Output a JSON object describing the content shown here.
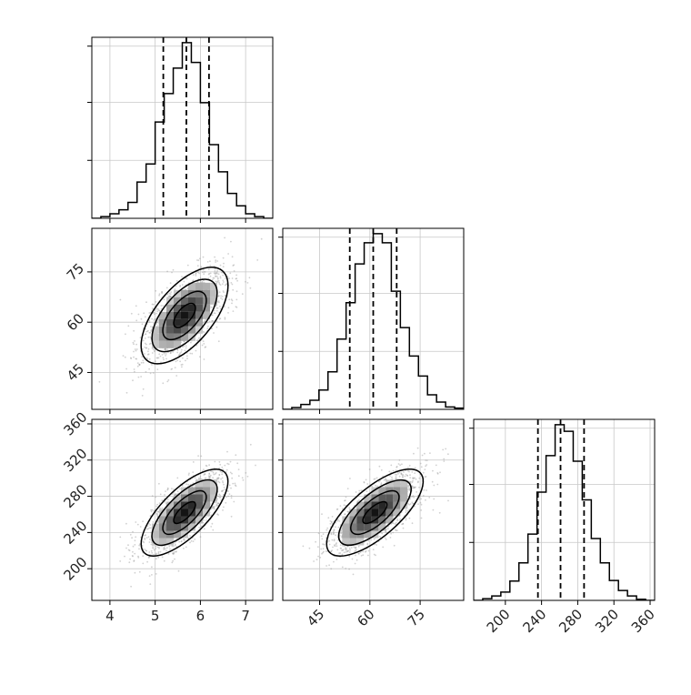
{
  "chart_data": {
    "type": "scatter",
    "variant": "corner-plot",
    "title": "",
    "grid": true,
    "colors": {
      "hist": "#000000",
      "quantile": "#000000",
      "scatter": "#9a9a9a",
      "grid": "#c8c8c8"
    },
    "parameters": [
      {
        "name": "",
        "range": [
          3.6,
          7.6
        ],
        "ticks": [
          4,
          5,
          6,
          7
        ],
        "tick_labels": [
          "4",
          "5",
          "6",
          "7"
        ],
        "quantiles": [
          5.18,
          5.69,
          6.19
        ],
        "histogram": {
          "bin_edges": [
            3.6,
            3.8,
            4.0,
            4.2,
            4.4,
            4.6,
            4.8,
            5.0,
            5.2,
            5.4,
            5.6,
            5.8,
            6.0,
            6.2,
            6.4,
            6.6,
            6.8,
            7.0,
            7.2,
            7.4,
            7.6
          ],
          "counts": [
            0,
            3,
            8,
            15,
            28,
            64,
            96,
            170,
            220,
            265,
            310,
            275,
            204,
            130,
            82,
            44,
            22,
            8,
            3,
            0
          ]
        }
      },
      {
        "name": "",
        "range": [
          34,
          88
        ],
        "ticks": [
          45,
          60,
          75
        ],
        "tick_labels": [
          "45",
          "60",
          "75"
        ],
        "quantiles": [
          54.0,
          61.0,
          68.0
        ],
        "histogram": {
          "bin_edges": [
            34,
            36.7,
            39.4,
            42.1,
            44.8,
            47.5,
            50.2,
            52.9,
            55.6,
            58.3,
            61,
            63.7,
            66.4,
            69.1,
            71.8,
            74.5,
            77.2,
            79.9,
            82.6,
            85.3,
            88
          ],
          "counts": [
            0,
            3,
            8,
            15,
            32,
            62,
            116,
            176,
            240,
            275,
            290,
            275,
            195,
            135,
            88,
            55,
            24,
            12,
            4,
            2
          ]
        }
      },
      {
        "name": "",
        "range": [
          165,
          365
        ],
        "ticks": [
          200,
          240,
          280,
          320,
          360
        ],
        "tick_labels": [
          "200",
          "240",
          "280",
          "320",
          "360"
        ],
        "quantiles": [
          236,
          261,
          287
        ],
        "histogram": {
          "bin_edges": [
            165,
            175,
            185,
            195,
            205,
            215,
            225,
            235,
            245,
            255,
            265,
            275,
            285,
            295,
            305,
            315,
            325,
            335,
            345,
            355,
            365
          ],
          "counts": [
            0,
            3,
            8,
            15,
            35,
            68,
            120,
            196,
            262,
            318,
            306,
            252,
            182,
            112,
            68,
            36,
            18,
            8,
            2,
            0
          ]
        }
      }
    ],
    "pairs": [
      {
        "x": 0,
        "y": 1,
        "center": [
          5.65,
          62.0
        ],
        "sd": [
          0.48,
          7.2
        ],
        "corr": 0.62
      },
      {
        "x": 0,
        "y": 2,
        "center": [
          5.65,
          262.0
        ],
        "sd": [
          0.48,
          24.0
        ],
        "corr": 0.72
      },
      {
        "x": 1,
        "y": 2,
        "center": [
          61.5,
          262.0
        ],
        "sd": [
          7.2,
          24.0
        ],
        "corr": 0.72
      }
    ],
    "contour_levels_sigma": [
      0.5,
      1.0,
      1.5,
      2.0
    ]
  }
}
